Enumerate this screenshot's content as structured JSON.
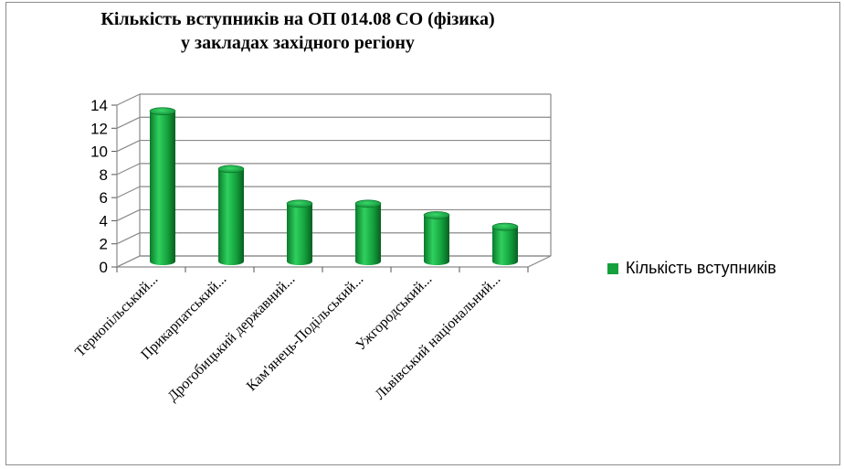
{
  "chart_data": {
    "type": "bar",
    "title_line1": "Кількість вступників на ОП 014.08 СО (фізика)",
    "title_line2": "у закладах західного регіону",
    "categories": [
      "Тернопільський...",
      "Прикарпатський...",
      "Дрогобицький державний...",
      "Кам'янець-Подільський...",
      "Ужгородський...",
      "Львівський національний..."
    ],
    "series": [
      {
        "name": "Кількість вступників",
        "values": [
          13,
          8,
          5,
          5,
          4,
          3
        ]
      }
    ],
    "yticks": [
      "0",
      "2",
      "4",
      "6",
      "8",
      "10",
      "12",
      "14"
    ],
    "ylim": [
      0,
      14
    ],
    "grid": true,
    "legend_position": "right",
    "bar_color": "#14a03c"
  }
}
